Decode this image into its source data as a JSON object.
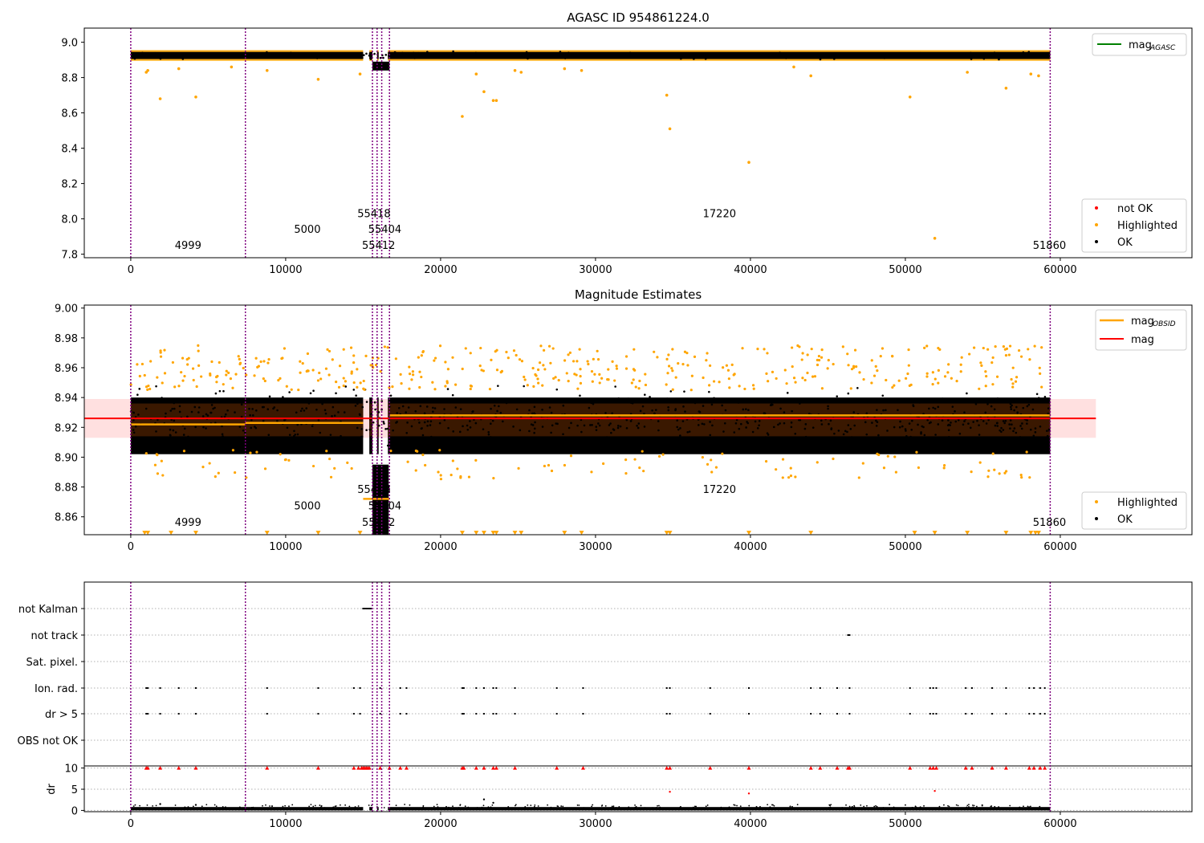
{
  "chart_data": [
    {
      "type": "scatter",
      "title": "AGASC ID 954861224.0",
      "xlim": [
        -3000,
        68500
      ],
      "ylim": [
        7.78,
        9.08
      ],
      "xticks": [
        0,
        10000,
        20000,
        30000,
        40000,
        50000,
        60000
      ],
      "yticks": [
        7.8,
        8.0,
        8.2,
        8.4,
        8.6,
        8.8,
        9.0
      ],
      "ytick_labels": [
        "7.8",
        "8.0",
        "8.2",
        "8.4",
        "8.6",
        "8.8",
        "9.0"
      ],
      "obs_boundaries": [
        0,
        7400,
        15600,
        15900,
        16200,
        16700,
        59350
      ],
      "obs_labels": [
        {
          "text": "4999",
          "x": 3700,
          "y": 7.83
        },
        {
          "text": "5000",
          "x": 11400,
          "y": 7.92
        },
        {
          "text": "55418",
          "x": 15700,
          "y": 8.01
        },
        {
          "text": "55404",
          "x": 16400,
          "y": 7.92
        },
        {
          "text": "55412",
          "x": 16000,
          "y": 7.83
        },
        {
          "text": "17220",
          "x": 38000,
          "y": 8.01
        },
        {
          "text": "51860",
          "x": 59300,
          "y": 7.83
        }
      ],
      "series": [
        {
          "name": "OK",
          "color": "#000000",
          "band": {
            "from": 8.9,
            "to": 8.95
          }
        },
        {
          "name": "Highlighted",
          "color": "#ffa500",
          "points": [
            [
              1000,
              8.83
            ],
            [
              1100,
              8.84
            ],
            [
              1900,
              8.68
            ],
            [
              3100,
              8.85
            ],
            [
              4200,
              8.69
            ],
            [
              6500,
              8.86
            ],
            [
              8800,
              8.84
            ],
            [
              12100,
              8.79
            ],
            [
              14800,
              8.82
            ],
            [
              21400,
              8.58
            ],
            [
              22300,
              8.82
            ],
            [
              22800,
              8.72
            ],
            [
              23400,
              8.67
            ],
            [
              23600,
              8.67
            ],
            [
              24800,
              8.84
            ],
            [
              25200,
              8.83
            ],
            [
              28000,
              8.85
            ],
            [
              29100,
              8.84
            ],
            [
              34600,
              8.7
            ],
            [
              34800,
              8.51
            ],
            [
              39900,
              8.32
            ],
            [
              42800,
              8.86
            ],
            [
              43900,
              8.81
            ],
            [
              50300,
              8.69
            ],
            [
              51900,
              7.89
            ],
            [
              54000,
              8.83
            ],
            [
              56500,
              8.74
            ],
            [
              58100,
              8.82
            ],
            [
              58600,
              8.81
            ]
          ]
        },
        {
          "name": "not OK",
          "color": "#ff0000",
          "points": []
        },
        {
          "name": "mag_AGASC",
          "color": "#008000",
          "line": true
        }
      ],
      "legend": [
        {
          "label": "mag",
          "sub": "AGASC",
          "kind": "line",
          "color": "#008000"
        },
        {
          "label": "not OK",
          "kind": "dot",
          "color": "#ff0000"
        },
        {
          "label": "Highlighted",
          "kind": "dot",
          "color": "#ffa500"
        },
        {
          "label": "OK",
          "kind": "dot",
          "color": "#000000"
        }
      ]
    },
    {
      "type": "scatter",
      "title": "Magnitude Estimates",
      "xlim": [
        -3000,
        68500
      ],
      "ylim": [
        8.848,
        9.002
      ],
      "xticks": [
        0,
        10000,
        20000,
        30000,
        40000,
        50000,
        60000
      ],
      "yticks": [
        8.86,
        8.88,
        8.9,
        8.92,
        8.94,
        8.96,
        8.98,
        9.0
      ],
      "ytick_labels": [
        "8.86",
        "8.88",
        "8.90",
        "8.92",
        "8.94",
        "8.96",
        "8.98",
        "9.00"
      ],
      "mag": 8.926,
      "mag_band": [
        8.913,
        8.939
      ],
      "mag_band_x": [
        -3000,
        62300
      ],
      "mag_obsid": [
        {
          "x": [
            0,
            7400
          ],
          "y": 8.922
        },
        {
          "x": [
            7400,
            15000
          ],
          "y": 8.923
        },
        {
          "x": [
            15000,
            16700
          ],
          "y": 8.872
        },
        {
          "x": [
            16700,
            59350
          ],
          "y": 8.928
        }
      ],
      "obs_boundaries": [
        0,
        7400,
        15600,
        15900,
        16200,
        16700,
        59350
      ],
      "obs_labels": [
        {
          "text": "4999",
          "x": 3700,
          "y": 8.854
        },
        {
          "text": "5000",
          "x": 11400,
          "y": 8.865
        },
        {
          "text": "55418",
          "x": 15700,
          "y": 8.876
        },
        {
          "text": "55404",
          "x": 16400,
          "y": 8.865
        },
        {
          "text": "55412",
          "x": 16000,
          "y": 8.854
        },
        {
          "text": "17220",
          "x": 38000,
          "y": 8.876
        },
        {
          "text": "51860",
          "x": 59300,
          "y": 8.854
        }
      ],
      "clipped_low_markers_x": [
        900,
        1100,
        2600,
        4200,
        8800,
        12100,
        14800,
        21400,
        22300,
        22800,
        23400,
        23600,
        24800,
        25200,
        28000,
        29100,
        34600,
        34800,
        39900,
        43900,
        50600,
        51900,
        54000,
        56500,
        58100,
        58400,
        58600
      ],
      "legend": [
        {
          "label": "mag",
          "sub": "OBSID",
          "kind": "line",
          "color": "#ffa500"
        },
        {
          "label": "mag",
          "kind": "line",
          "color": "#ff0000"
        },
        {
          "label": "Highlighted",
          "kind": "dot",
          "color": "#ffa500"
        },
        {
          "label": "OK",
          "kind": "dot",
          "color": "#000000"
        }
      ]
    },
    {
      "type": "scatter",
      "xlim": [
        -3000,
        68500
      ],
      "xticks": [
        0,
        10000,
        20000,
        30000,
        40000,
        50000,
        60000
      ],
      "flag_rows": [
        "not Kalman",
        "not track",
        "Sat. pixel.",
        "Ion. rad.",
        "dr > 5",
        "OBS not OK"
      ],
      "flag_points": {
        "not Kalman": [
          15000,
          15100,
          15200,
          15300,
          15400,
          15500,
          16700
        ],
        "not track": [
          46300,
          46400
        ],
        "Sat. pixel.": [],
        "Ion. rad.": [
          1000,
          1100,
          1900,
          3100,
          4200,
          8800,
          12100,
          14400,
          14800,
          16100,
          17400,
          17800,
          21400,
          21500,
          22300,
          22800,
          23400,
          23600,
          24800,
          27500,
          29200,
          34600,
          34800,
          37400,
          39900,
          43900,
          44500,
          45600,
          46400,
          50300,
          51600,
          51800,
          52000,
          53900,
          54300,
          55600,
          56500,
          58000,
          58300,
          58700,
          59000
        ],
        "dr > 5": [
          1000,
          1100,
          1900,
          3100,
          4200,
          8800,
          12100,
          14400,
          14800,
          16100,
          17400,
          17800,
          21400,
          21500,
          22300,
          22800,
          23400,
          23600,
          24800,
          27500,
          29200,
          34600,
          34800,
          37400,
          39900,
          43900,
          44500,
          45600,
          46400,
          50300,
          51600,
          51800,
          52000,
          53900,
          54300,
          55600,
          56500,
          58000,
          58300,
          58700,
          59000
        ],
        "OBS not OK": []
      },
      "dr": {
        "ylabel": "dr",
        "ylim": [
          -0.3,
          10.5
        ],
        "yticks": [
          0,
          5,
          10
        ],
        "ytick_labels": [
          "0",
          "5",
          "10"
        ],
        "clip_value": 10,
        "clipped_x": [
          1000,
          1100,
          1900,
          3100,
          4200,
          8800,
          12100,
          14400,
          14700,
          14900,
          15000,
          15100,
          15200,
          15300,
          15400,
          16100,
          16700,
          17400,
          17800,
          21400,
          21500,
          22300,
          22800,
          23400,
          23600,
          24800,
          27500,
          29200,
          34600,
          34800,
          37400,
          39900,
          43900,
          44500,
          45600,
          46300,
          46400,
          50300,
          51600,
          51800,
          52000,
          53900,
          54300,
          55600,
          56500,
          58000,
          58300,
          58700,
          59000
        ],
        "red_points": [
          [
            34800,
            4.4
          ],
          [
            39900,
            4.0
          ],
          [
            51900,
            4.6
          ]
        ],
        "black_outliers": [
          [
            1900,
            1.5
          ],
          [
            4200,
            1.3
          ],
          [
            22800,
            2.6
          ],
          [
            23400,
            1.8
          ]
        ]
      }
    }
  ]
}
